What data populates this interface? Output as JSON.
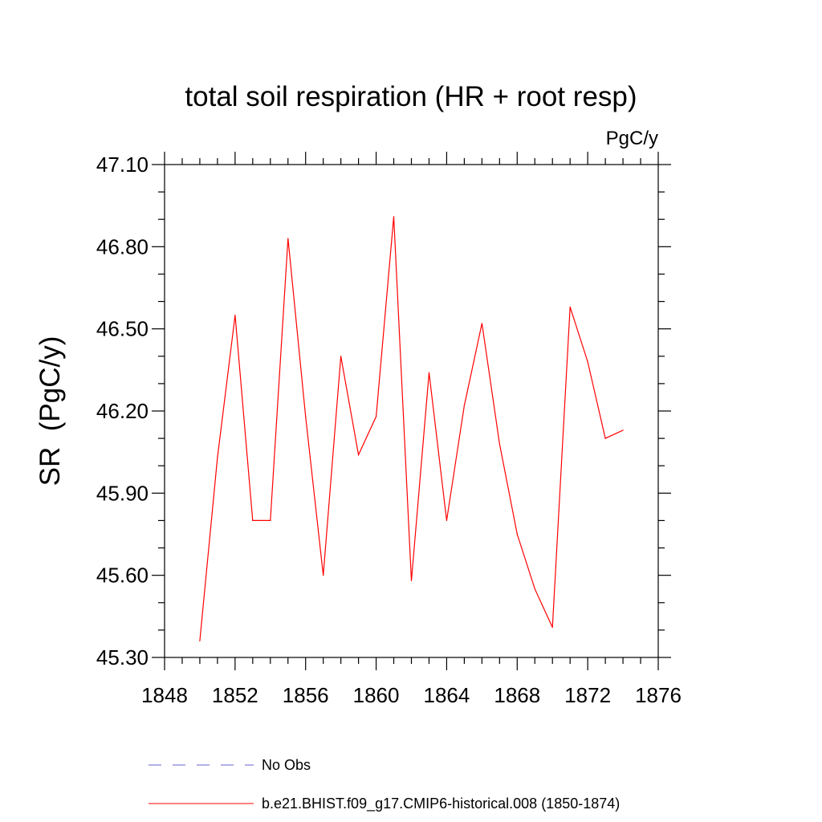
{
  "chart_data": {
    "type": "line",
    "title": "total soil respiration (HR + root resp)",
    "units_label": "PgC/y",
    "xlabel": "",
    "ylabel": "SR  (PgC/y)",
    "xlim": [
      1848,
      1876
    ],
    "ylim": [
      45.3,
      47.1
    ],
    "x_ticks": [
      1848,
      1852,
      1856,
      1860,
      1864,
      1868,
      1872,
      1876
    ],
    "x_tick_labels": [
      "1848",
      "1852",
      "1856",
      "1860",
      "1864",
      "1868",
      "1872",
      "1876"
    ],
    "y_ticks": [
      45.3,
      45.6,
      45.9,
      46.2,
      46.5,
      46.8,
      47.1
    ],
    "y_tick_labels": [
      "45.30",
      "45.60",
      "45.90",
      "46.20",
      "46.50",
      "46.80",
      "47.10"
    ],
    "x_minor_step": 1,
    "y_minor_step": 0.1,
    "grid": false,
    "series": [
      {
        "name": "b.e21.BHIST.f09_g17.CMIP6-historical.008 (1850-1874)",
        "color": "#ff0000",
        "style": "solid",
        "x": [
          1850,
          1851,
          1852,
          1853,
          1854,
          1855,
          1856,
          1857,
          1858,
          1859,
          1860,
          1861,
          1862,
          1863,
          1864,
          1865,
          1866,
          1867,
          1868,
          1869,
          1870,
          1871,
          1872,
          1873,
          1874
        ],
        "values": [
          45.36,
          46.03,
          46.55,
          45.8,
          45.8,
          46.83,
          46.18,
          45.6,
          46.4,
          46.04,
          46.18,
          46.91,
          45.58,
          46.34,
          45.8,
          46.22,
          46.52,
          46.08,
          45.75,
          45.55,
          45.41,
          46.58,
          46.38,
          46.1,
          46.13
        ]
      }
    ],
    "legend": {
      "position": "bottom",
      "entries": [
        {
          "label": "No Obs",
          "color": "#6666cc",
          "style": "dashed"
        },
        {
          "label": "b.e21.BHIST.f09_g17.CMIP6-historical.008 (1850-1874)",
          "color": "#ff0000",
          "style": "solid"
        }
      ]
    }
  }
}
